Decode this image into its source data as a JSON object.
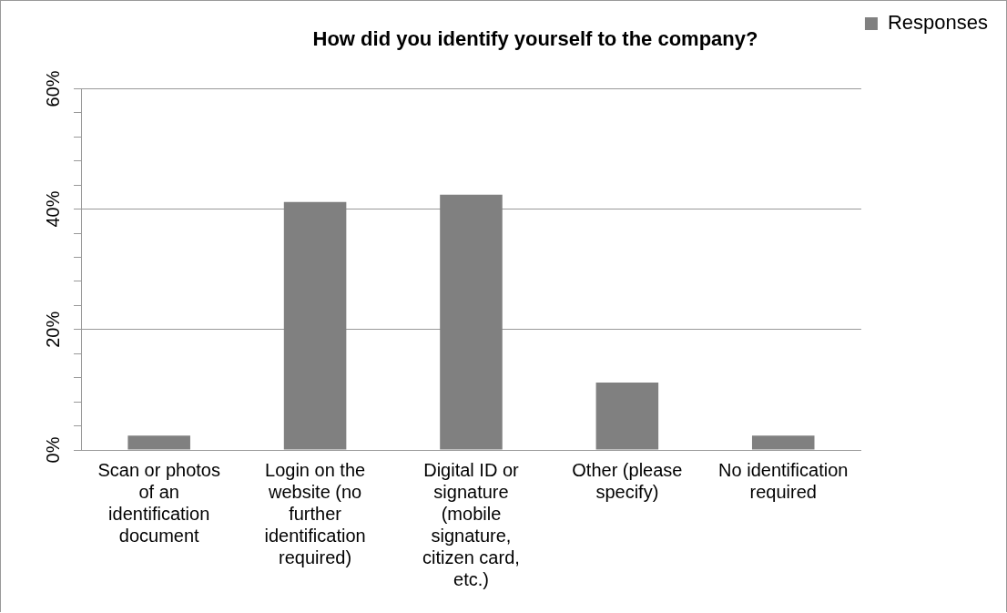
{
  "chart_data": {
    "type": "bar",
    "title": "How did you identify yourself to the company?",
    "categories": [
      "Scan or photos of an identification document",
      "Login on the website (no further identification required)",
      "Digital ID or signature (mobile signature, citizen card, etc.)",
      "Other (please specify)",
      "No identification required"
    ],
    "series": [
      {
        "name": "Responses",
        "color": "#808080",
        "values": [
          2.4,
          41.2,
          42.4,
          11.2,
          2.4
        ]
      }
    ],
    "ylim": [
      0,
      60
    ],
    "yticks": [
      {
        "value": 0,
        "label": "0%"
      },
      {
        "value": 4,
        "label": null
      },
      {
        "value": 8,
        "label": null
      },
      {
        "value": 12,
        "label": null
      },
      {
        "value": 16,
        "label": null
      },
      {
        "value": 20,
        "label": "20%"
      },
      {
        "value": 24,
        "label": null
      },
      {
        "value": 28,
        "label": null
      },
      {
        "value": 32,
        "label": null
      },
      {
        "value": 36,
        "label": null
      },
      {
        "value": 40,
        "label": "40%"
      },
      {
        "value": 44,
        "label": null
      },
      {
        "value": 48,
        "label": null
      },
      {
        "value": 52,
        "label": null
      },
      {
        "value": 56,
        "label": null
      },
      {
        "value": 60,
        "label": "60%"
      }
    ],
    "grid": "y",
    "legend": "top right"
  }
}
